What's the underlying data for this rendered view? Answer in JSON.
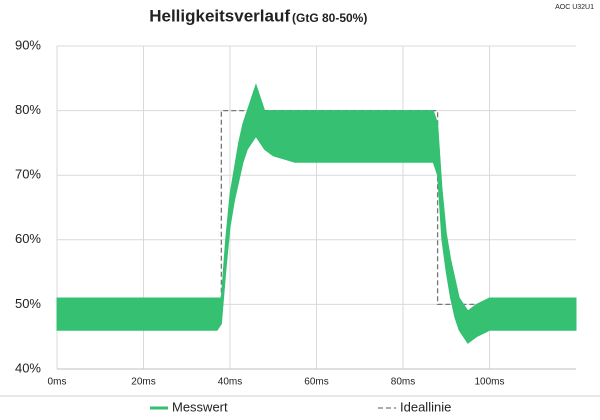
{
  "chart_data": {
    "type": "line",
    "title": "Helligkeitsverlauf",
    "subtitle": "(GtG 80-50%)",
    "annotation": "AOC U32U1",
    "xlim": [
      0,
      120
    ],
    "ylim": [
      40,
      90
    ],
    "xticks": [
      {
        "value": 0,
        "label": "0ms"
      },
      {
        "value": 20,
        "label": "20ms"
      },
      {
        "value": 40,
        "label": "40ms"
      },
      {
        "value": 60,
        "label": "60ms"
      },
      {
        "value": 80,
        "label": "80ms"
      },
      {
        "value": 100,
        "label": "100ms"
      }
    ],
    "yticks": [
      {
        "value": 40,
        "label": "40%"
      },
      {
        "value": 50,
        "label": "50%"
      },
      {
        "value": 60,
        "label": "60%"
      },
      {
        "value": 70,
        "label": "70%"
      },
      {
        "value": 80,
        "label": "80%"
      },
      {
        "value": 90,
        "label": "90%"
      }
    ],
    "grid": true,
    "legend": "bottom",
    "series": [
      {
        "name": "Messwert",
        "color": "#35c072",
        "style": "band",
        "x": [
          0,
          10,
          20,
          30,
          37,
          38,
          39,
          40,
          41,
          42,
          43,
          44,
          45,
          46,
          47,
          48,
          50,
          55,
          60,
          70,
          80,
          87,
          88,
          89,
          90,
          91,
          92,
          93,
          94,
          95,
          97,
          100,
          110,
          120
        ],
        "low": [
          46,
          46,
          46,
          46,
          46,
          47,
          55,
          62,
          66,
          69,
          72,
          74,
          75,
          76,
          75,
          74,
          73,
          72,
          72,
          72,
          72,
          72,
          70,
          60,
          55,
          51,
          48,
          46,
          45,
          44,
          45,
          46,
          46,
          46
        ],
        "high": [
          51,
          51,
          51,
          51,
          51,
          51,
          60,
          67,
          71,
          75,
          78,
          80,
          82,
          84,
          82,
          80,
          80,
          80,
          80,
          80,
          80,
          80,
          78,
          68,
          61,
          57,
          54,
          51,
          50,
          49,
          50,
          51,
          51,
          51
        ]
      },
      {
        "name": "Ideallinie",
        "color": "#777777",
        "style": "dashed",
        "x": [
          0,
          38,
          38,
          88,
          88,
          120
        ],
        "values": [
          50,
          50,
          80,
          80,
          50,
          50
        ]
      }
    ]
  }
}
